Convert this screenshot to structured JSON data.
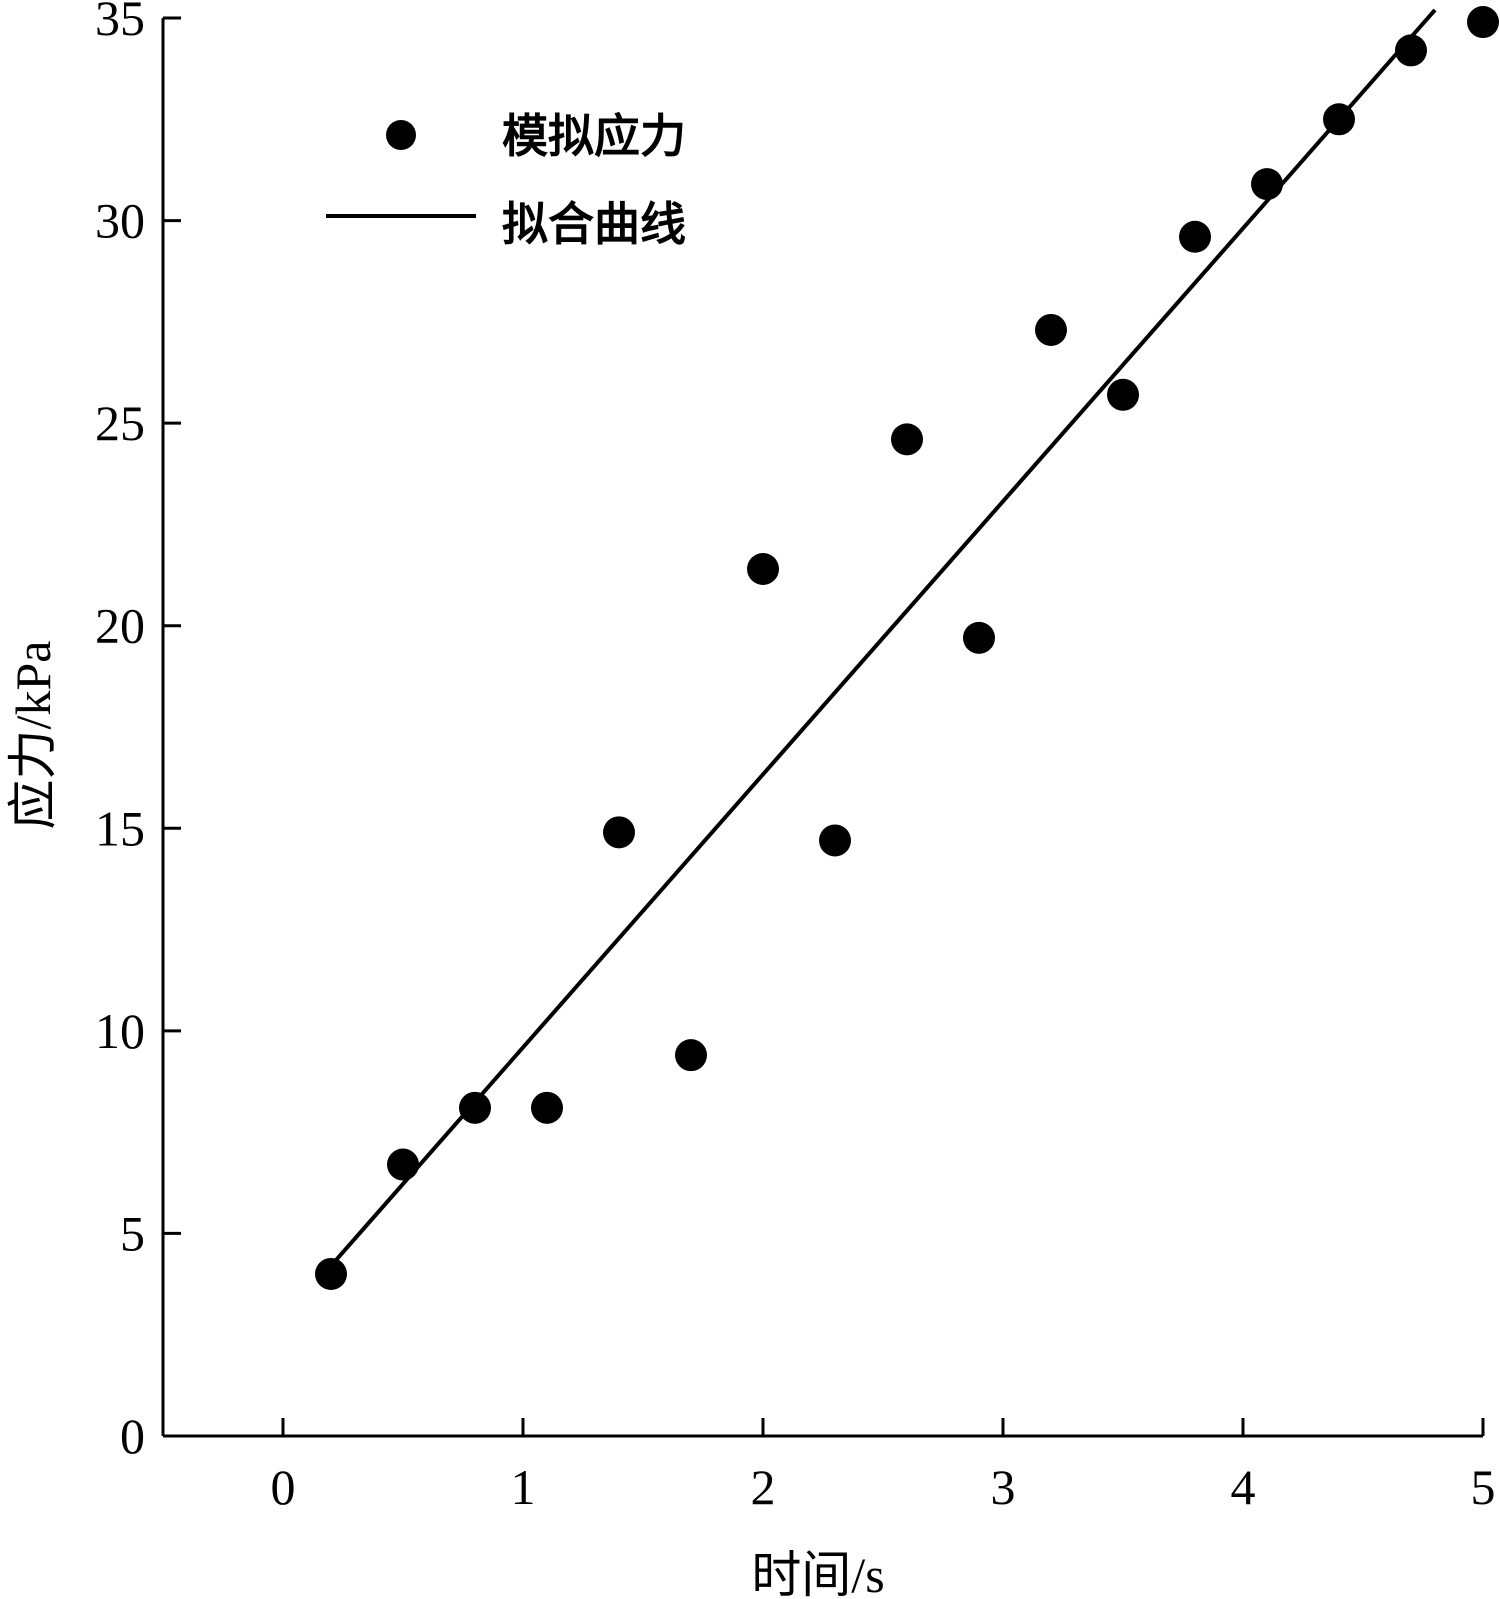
{
  "chart_data": {
    "type": "scatter",
    "title": "",
    "xlabel": "时间/s",
    "ylabel": "应力/kPa",
    "xlim": [
      -0.5,
      5
    ],
    "ylim": [
      0,
      35
    ],
    "xticks": [
      0,
      1,
      2,
      3,
      4,
      5
    ],
    "yticks": [
      0,
      5,
      10,
      15,
      20,
      25,
      30,
      35
    ],
    "grid": false,
    "legend_position": "top-left",
    "series": [
      {
        "name": "模拟应力",
        "kind": "scatter",
        "color": "#000000",
        "x": [
          0.2,
          0.5,
          0.8,
          1.1,
          1.4,
          1.7,
          2.0,
          2.3,
          2.6,
          2.9,
          3.2,
          3.5,
          3.8,
          4.1,
          4.4,
          4.7,
          5.0
        ],
        "y": [
          4.0,
          6.7,
          8.1,
          8.1,
          14.9,
          9.4,
          21.4,
          14.7,
          24.6,
          19.7,
          27.3,
          25.7,
          29.6,
          30.9,
          32.5,
          34.2,
          34.9
        ]
      },
      {
        "name": "拟合曲线",
        "kind": "line",
        "color": "#000000",
        "x": [
          0.2,
          4.8
        ],
        "y": [
          4.2,
          35.2
        ]
      }
    ]
  }
}
